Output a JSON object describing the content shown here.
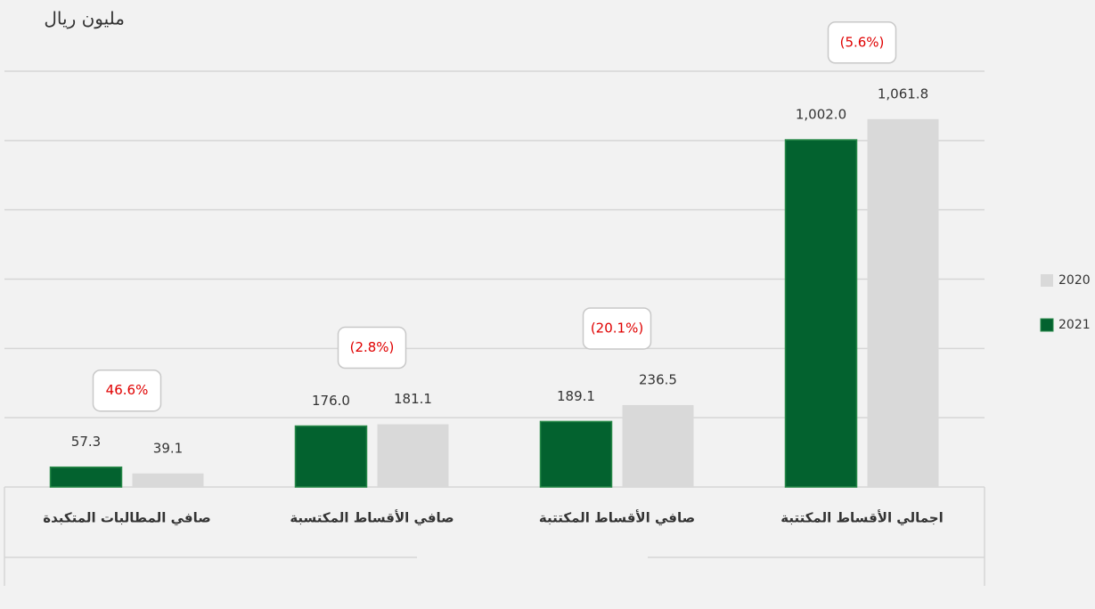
{
  "chart_data": {
    "type": "bar",
    "unit_label": "مليون ريال",
    "categories": [
      "اجمالي الأقساط المكتتبة",
      "صافي الأقساط المكتتبة",
      "صافي الأقساط المكتسبة",
      "صافي المطالبات المتكبدة"
    ],
    "series": [
      {
        "name": "2021",
        "color": "#03622f",
        "values": [
          1002.0,
          189.1,
          176.0,
          57.3
        ],
        "value_labels": [
          "1,002.0",
          "189.1",
          "176.0",
          "57.3"
        ]
      },
      {
        "name": "2020",
        "color": "#d9d9d9",
        "values": [
          1061.8,
          236.5,
          181.1,
          39.1
        ],
        "value_labels": [
          "1,061.8",
          "236.5",
          "181.1",
          "39.1"
        ]
      }
    ],
    "changes": [
      "(5.6%)",
      "(20.1%)",
      "(2.8%)",
      "46.6%"
    ],
    "ylim": [
      0,
      1200
    ],
    "yticks": [
      0,
      200,
      400,
      600,
      800,
      1000,
      1200
    ],
    "grid": true
  }
}
